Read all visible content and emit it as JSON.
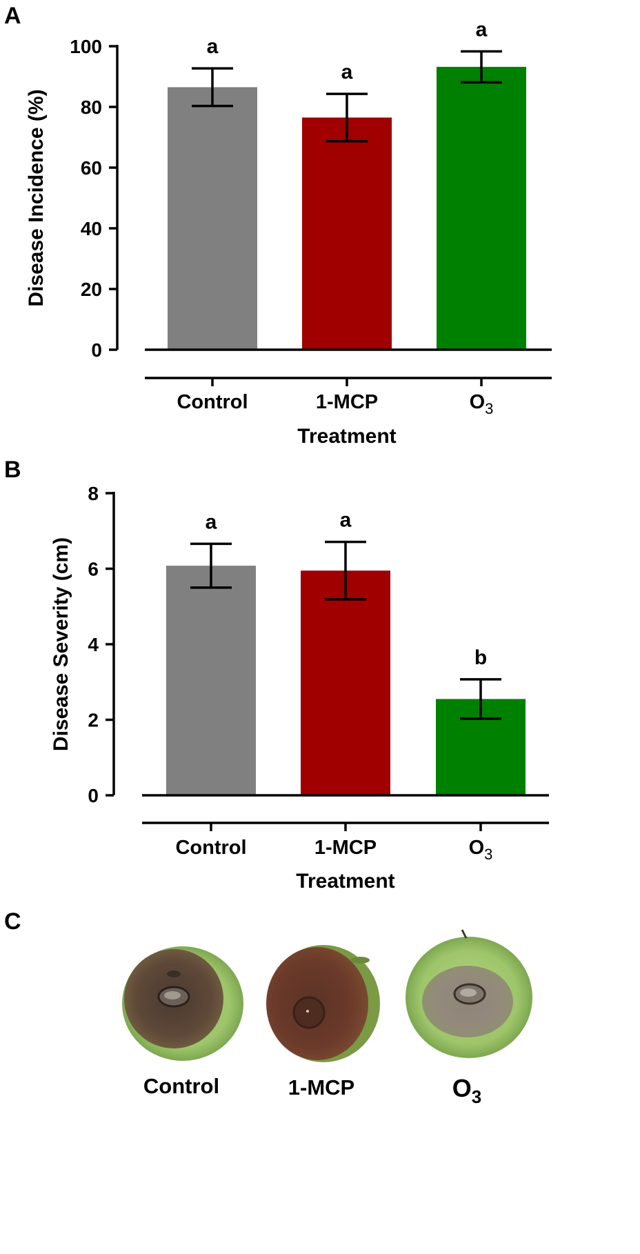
{
  "chart_data": [
    {
      "panel": "A",
      "type": "bar",
      "categories": [
        "Control",
        "1-MCP",
        "O3"
      ],
      "category_display": [
        {
          "main": "Control",
          "sub": ""
        },
        {
          "main": "1-MCP",
          "sub": ""
        },
        {
          "main": "O",
          "sub": "3"
        }
      ],
      "values": [
        86.5,
        76.5,
        93.2
      ],
      "errors": [
        6.2,
        7.8,
        5.1
      ],
      "significance": [
        "a",
        "a",
        "a"
      ],
      "colors": [
        "#808080",
        "#a00000",
        "#008000"
      ],
      "xlabel": "Treatment",
      "ylabel": "Disease Incidence (%)",
      "ylim": [
        0,
        100
      ],
      "yticks": [
        0,
        20,
        40,
        60,
        80,
        100
      ]
    },
    {
      "panel": "B",
      "type": "bar",
      "categories": [
        "Control",
        "1-MCP",
        "O3"
      ],
      "category_display": [
        {
          "main": "Control",
          "sub": ""
        },
        {
          "main": "1-MCP",
          "sub": ""
        },
        {
          "main": "O",
          "sub": "3"
        }
      ],
      "values": [
        6.08,
        5.95,
        2.55
      ],
      "errors": [
        0.58,
        0.76,
        0.52
      ],
      "significance": [
        "a",
        "a",
        "b"
      ],
      "colors": [
        "#808080",
        "#a00000",
        "#008000"
      ],
      "xlabel": "Treatment",
      "ylabel": "Disease Severity (cm)",
      "ylim": [
        0,
        8
      ],
      "yticks": [
        0,
        2,
        4,
        6,
        8
      ]
    }
  ],
  "photos": {
    "panel": "C",
    "items": [
      {
        "main": "Control",
        "sub": ""
      },
      {
        "main": "1-MCP",
        "sub": ""
      },
      {
        "main": "O",
        "sub": "3"
      }
    ]
  }
}
